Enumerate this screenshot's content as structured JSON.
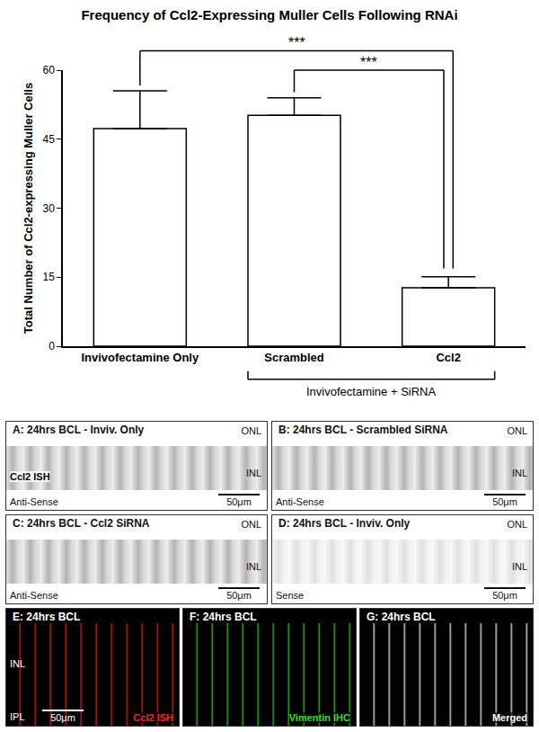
{
  "chart_data": {
    "type": "bar",
    "title": "Frequency of Ccl2-Expressing Muller Cells Following RNAi",
    "y_label": "Total Number of Ccl2-expressing Muller Cells",
    "categories": [
      "Invivofectamine Only",
      "Scrambled",
      "Ccl2"
    ],
    "values": [
      47.3,
      50.2,
      12.7
    ],
    "error_bars": [
      8.2,
      3.8,
      2.4
    ],
    "color": "#ffffff",
    "ylim": [
      0,
      60
    ],
    "yticks": [
      0,
      15,
      30,
      45,
      60
    ],
    "grid": false,
    "group": {
      "label": "Invivofectamine + SiRNA",
      "categories": [
        "Scrambled",
        "Ccl2"
      ]
    },
    "significance": [
      {
        "from": "Invivofectamine Only",
        "to": "Ccl2",
        "label": "***"
      },
      {
        "from": "Scrambled",
        "to": "Ccl2",
        "label": "***"
      }
    ]
  },
  "panels": [
    {
      "title": "A: 24hrs BCL - Inviv. Only",
      "style": "brightfield",
      "layers": [
        "ONL",
        "INL"
      ],
      "stain": "Ccl2 ISH",
      "stain_color": "#000000",
      "probe": "Anti-Sense",
      "scale_bar": "50μm"
    },
    {
      "title": "B: 24hrs BCL - Scrambled SiRNA",
      "style": "brightfield",
      "layers": [
        "ONL",
        "INL"
      ],
      "probe": "Anti-Sense",
      "scale_bar": "50μm"
    },
    {
      "title": "C: 24hrs BCL - Ccl2 SiRNA",
      "style": "brightfield",
      "layers": [
        "ONL",
        "INL"
      ],
      "probe": "Anti-Sense",
      "scale_bar": "50μm"
    },
    {
      "title": "D: 24hrs BCL - Inviv. Only",
      "style": "brightfield",
      "layers": [
        "ONL",
        "INL"
      ],
      "probe": "Sense",
      "scale_bar": "50μm"
    },
    {
      "title": "E: 24hrs BCL",
      "style": "fluorescence",
      "layers": [
        "INL",
        "IPL"
      ],
      "stain": "Ccl2 ISH",
      "stain_color": "#ff2020",
      "scale_bar": "50μm"
    },
    {
      "title": "F: 24hrs BCL",
      "style": "fluorescence",
      "stain": "Vimentin IHC",
      "stain_color": "#33dd33"
    },
    {
      "title": "G: 24hrs BCL",
      "style": "fluorescence",
      "stain": "Merged",
      "stain_color": "#ffffff"
    }
  ]
}
